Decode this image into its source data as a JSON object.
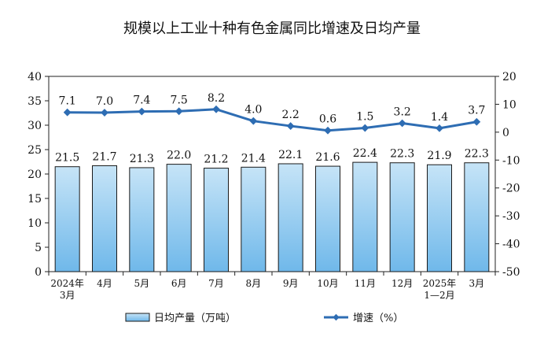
{
  "chart_data": {
    "type": "bar",
    "title": "规模以上工业十种有色金属同比增速及日均产量",
    "categories": [
      [
        "2024年",
        "3月"
      ],
      [
        "4月"
      ],
      [
        "5月"
      ],
      [
        "6月"
      ],
      [
        "7月"
      ],
      [
        "8月"
      ],
      [
        "9月"
      ],
      [
        "10月"
      ],
      [
        "11月"
      ],
      [
        "12月"
      ],
      [
        "2025年",
        "1—2月"
      ],
      [
        "3月"
      ]
    ],
    "series": [
      {
        "name": "日均产量（万吨）",
        "type": "bar",
        "axis": "left",
        "values": [
          21.5,
          21.7,
          21.3,
          22.0,
          21.2,
          21.4,
          22.1,
          21.6,
          22.4,
          22.3,
          21.9,
          22.3
        ],
        "labels": [
          "21.5",
          "21.7",
          "21.3",
          "22.0",
          "21.2",
          "21.4",
          "22.1",
          "21.6",
          "22.4",
          "22.3",
          "21.9",
          "22.3"
        ]
      },
      {
        "name": "增速（%）",
        "type": "line",
        "axis": "right",
        "values": [
          7.1,
          7.0,
          7.4,
          7.5,
          8.2,
          4.0,
          2.2,
          0.6,
          1.5,
          3.2,
          1.4,
          3.7
        ],
        "labels": [
          "7.1",
          "7.0",
          "7.4",
          "7.5",
          "8.2",
          "4.0",
          "2.2",
          "0.6",
          "1.5",
          "3.2",
          "1.4",
          "3.7"
        ]
      }
    ],
    "y_left": {
      "ylim": [
        0,
        40
      ],
      "ticks": [
        "0",
        "5",
        "10",
        "15",
        "20",
        "25",
        "30",
        "35",
        "40"
      ]
    },
    "y_right": {
      "ylim": [
        -50,
        20
      ],
      "ticks": [
        "-50",
        "-40",
        "-30",
        "-20",
        "-10",
        "0",
        "10",
        "20"
      ]
    },
    "grid": false,
    "legend_position": "bottom",
    "colors": {
      "bar_fill_top": "#c6e4f7",
      "bar_fill_bottom": "#6fb8ea",
      "bar_stroke": "#1a1a1a",
      "line": "#2e6db3",
      "marker": "#2e6db3",
      "axis": "#222222",
      "text": "#111111"
    }
  }
}
